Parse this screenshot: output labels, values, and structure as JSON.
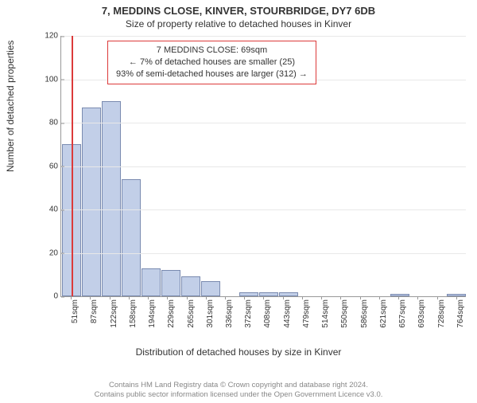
{
  "title": "7, MEDDINS CLOSE, KINVER, STOURBRIDGE, DY7 6DB",
  "subtitle": "Size of property relative to detached houses in Kinver",
  "y_label": "Number of detached properties",
  "x_label": "Distribution of detached houses by size in Kinver",
  "chart": {
    "type": "histogram",
    "ylim": [
      0,
      120
    ],
    "y_ticks": [
      0,
      20,
      40,
      60,
      80,
      100,
      120
    ],
    "x_range": [
      51,
      782
    ],
    "x_ticks": [
      51,
      87,
      122,
      158,
      194,
      229,
      265,
      301,
      336,
      372,
      408,
      443,
      479,
      514,
      550,
      586,
      621,
      657,
      693,
      728,
      764
    ],
    "x_tick_unit": "sqm",
    "bar_values": [
      70,
      87,
      90,
      54,
      13,
      12,
      9,
      7,
      0,
      2,
      2,
      2,
      0,
      0,
      0,
      0,
      0,
      1,
      0,
      0,
      1
    ],
    "bar_fill": "#c2cfe8",
    "bar_border": "#7a8bb0",
    "grid_color": "#e8e8e8",
    "axis_color": "#999999",
    "background": "#ffffff",
    "reference_value": 69,
    "reference_color": "#dc3a3a",
    "annotation": {
      "line1": "7 MEDDINS CLOSE: 69sqm",
      "line2": "← 7% of detached houses are smaller (25)",
      "line3": "93% of semi-detached houses are larger (312) →",
      "border_color": "#dc3a3a"
    }
  },
  "footer": {
    "line1": "Contains HM Land Registry data © Crown copyright and database right 2024.",
    "line2": "Contains public sector information licensed under the Open Government Licence v3.0."
  }
}
